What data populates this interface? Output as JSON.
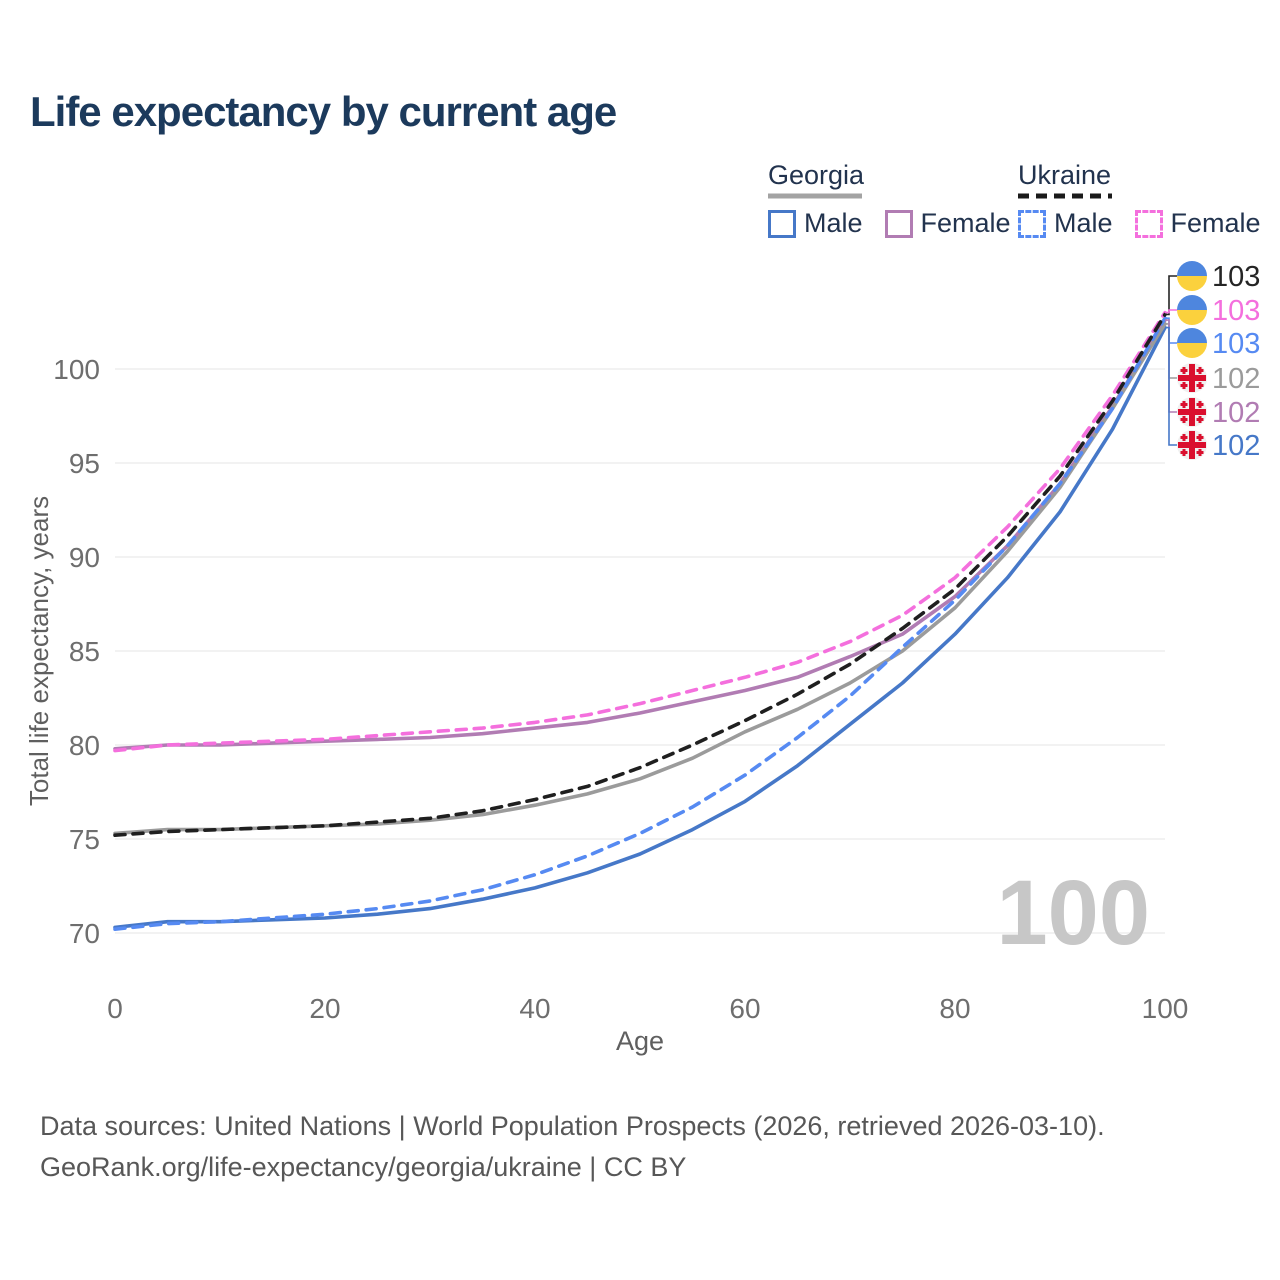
{
  "title": "Life expectancy by current age",
  "legend": {
    "georgia": {
      "label": "Georgia",
      "male_label": "Male",
      "female_label": "Female",
      "underline_color": "#a3a3a3",
      "male_color": "#4678c8",
      "female_color": "#b17cb3"
    },
    "ukraine": {
      "label": "Ukraine",
      "male_label": "Male",
      "female_label": "Female",
      "underline_color": "#1a1a1a",
      "male_color": "#568af2",
      "female_color": "#f46fdd"
    }
  },
  "axes": {
    "xlabel": "Age",
    "ylabel": "Total life expectancy, years",
    "xticks": [
      0,
      20,
      40,
      60,
      80,
      100
    ],
    "yticks": [
      70,
      75,
      80,
      85,
      90,
      95,
      100
    ],
    "tick_color": "#6e6e6e",
    "grid_color": "#ebebeb"
  },
  "watermark": "100",
  "footer": {
    "line1": "Data sources: United Nations | World Population Prospects (2026, retrieved 2026-03-10).",
    "line2": "GeoRank.org/life-expectancy/georgia/ukraine | CC BY"
  },
  "end_labels": [
    {
      "value": "103",
      "flag": "ukraine",
      "series": "Ukraine Both sexes",
      "color": "#252525"
    },
    {
      "value": "103",
      "flag": "ukraine",
      "series": "Ukraine Female",
      "color": "#f46fdd"
    },
    {
      "value": "103",
      "flag": "ukraine",
      "series": "Ukraine Male",
      "color": "#568af2"
    },
    {
      "value": "102",
      "flag": "georgia",
      "series": "Georgia Both sexes",
      "color": "#9b9b9b"
    },
    {
      "value": "102",
      "flag": "georgia",
      "series": "Georgia Female",
      "color": "#b17cb3"
    },
    {
      "value": "102",
      "flag": "georgia",
      "series": "Georgia Male",
      "color": "#4678c8"
    }
  ],
  "flag_colors": {
    "ukraine_blue": "#4e86de",
    "ukraine_yellow": "#fbd13d",
    "georgia_bg": "#f0f0f0",
    "georgia_red": "#da0f2e"
  },
  "chart_data": {
    "type": "line",
    "title": "Life expectancy by current age",
    "xlabel": "Age",
    "ylabel": "Total life expectancy, years",
    "xlim": [
      0,
      100
    ],
    "ylim": [
      68,
      104
    ],
    "xticks": [
      0,
      20,
      40,
      60,
      80,
      100
    ],
    "yticks": [
      70,
      75,
      80,
      85,
      90,
      95,
      100
    ],
    "grid": "horizontal",
    "legend_position": "top-right",
    "x": [
      0,
      5,
      10,
      15,
      20,
      25,
      30,
      35,
      40,
      45,
      50,
      55,
      60,
      65,
      70,
      75,
      80,
      85,
      90,
      95,
      100
    ],
    "series": [
      {
        "name": "Georgia Male",
        "country": "Georgia",
        "sex": "Male",
        "color": "#4678c8",
        "dash": "solid",
        "values": [
          70.3,
          70.6,
          70.6,
          70.7,
          70.8,
          71.0,
          71.3,
          71.8,
          72.4,
          73.2,
          74.2,
          75.5,
          77.0,
          78.9,
          81.1,
          83.3,
          85.9,
          88.9,
          92.4,
          96.8,
          102.2
        ]
      },
      {
        "name": "Georgia Female",
        "country": "Georgia",
        "sex": "Female",
        "color": "#b17cb3",
        "dash": "solid",
        "values": [
          79.8,
          80.0,
          80.0,
          80.1,
          80.2,
          80.3,
          80.4,
          80.6,
          80.9,
          81.2,
          81.7,
          82.3,
          82.9,
          83.6,
          84.7,
          85.9,
          87.9,
          90.6,
          93.9,
          98.0,
          102.6
        ]
      },
      {
        "name": "Georgia Both sexes",
        "country": "Georgia",
        "sex": "Both",
        "color": "#9b9b9b",
        "dash": "solid",
        "values": [
          75.3,
          75.5,
          75.5,
          75.6,
          75.7,
          75.8,
          76.0,
          76.3,
          76.8,
          77.4,
          78.2,
          79.3,
          80.7,
          81.9,
          83.3,
          85.0,
          87.3,
          90.3,
          93.7,
          97.9,
          102.4
        ]
      },
      {
        "name": "Ukraine Male",
        "country": "Ukraine",
        "sex": "Male",
        "color": "#568af2",
        "dash": "dashed",
        "values": [
          70.2,
          70.5,
          70.6,
          70.8,
          71.0,
          71.3,
          71.7,
          72.3,
          73.1,
          74.1,
          75.3,
          76.7,
          78.4,
          80.4,
          82.6,
          85.2,
          87.7,
          90.6,
          93.9,
          97.9,
          102.7
        ]
      },
      {
        "name": "Ukraine Female",
        "country": "Ukraine",
        "sex": "Female",
        "color": "#f46fdd",
        "dash": "dashed",
        "values": [
          79.7,
          80.0,
          80.1,
          80.2,
          80.3,
          80.5,
          80.7,
          80.9,
          81.2,
          81.6,
          82.2,
          82.9,
          83.6,
          84.4,
          85.5,
          86.9,
          88.9,
          91.6,
          94.7,
          98.6,
          103.0
        ]
      },
      {
        "name": "Ukraine Both sexes",
        "country": "Ukraine",
        "sex": "Both",
        "color": "#1f1f1f",
        "dash": "dashed",
        "values": [
          75.2,
          75.4,
          75.5,
          75.6,
          75.7,
          75.9,
          76.1,
          76.5,
          77.1,
          77.8,
          78.8,
          80.0,
          81.3,
          82.7,
          84.3,
          86.2,
          88.3,
          91.1,
          94.3,
          98.3,
          102.9
        ]
      }
    ]
  }
}
